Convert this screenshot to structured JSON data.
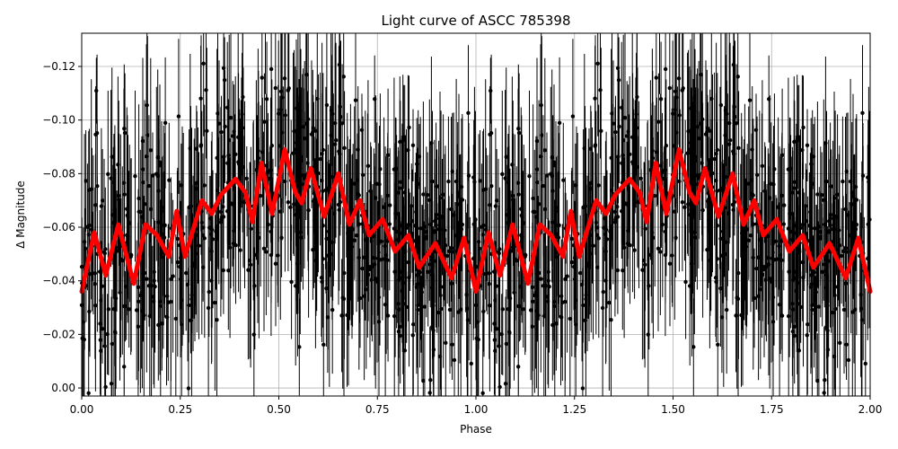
{
  "chart_data": {
    "type": "line",
    "title": "Light curve of ASCC 785398",
    "xlabel": "Phase",
    "ylabel": "Δ Magnitude",
    "xlim": [
      0.0,
      2.0
    ],
    "ylim": [
      0.003,
      -0.1324
    ],
    "y_inverted": true,
    "grid": true,
    "legend": null,
    "x_ticks": [
      0.0,
      0.25,
      0.5,
      0.75,
      1.0,
      1.25,
      1.5,
      1.75,
      2.0
    ],
    "x_tick_labels": [
      "0.00",
      "0.25",
      "0.50",
      "0.75",
      "1.00",
      "1.25",
      "1.50",
      "1.75",
      "2.00"
    ],
    "y_ticks": [
      -0.12,
      -0.1,
      -0.08,
      -0.06,
      -0.04,
      -0.02,
      0.0
    ],
    "y_tick_labels": [
      "−0.12",
      "−0.10",
      "−0.08",
      "−0.06",
      "−0.04",
      "−0.02",
      "0.00"
    ],
    "series": [
      {
        "name": "observations",
        "kind": "errorbar-scatter",
        "color": "#000000",
        "description": "Dense phase-folded photometric measurements with vertical error bars, spanning roughly −0.13 to 0.00 magnitude, repeated over two phase cycles",
        "approx_center": -0.058,
        "approx_spread": 0.045
      },
      {
        "name": "smoothed model",
        "kind": "line",
        "color": "#ff0000",
        "linewidth": 5,
        "period_repeats": 2,
        "x": [
          0.0,
          0.032,
          0.061,
          0.093,
          0.132,
          0.162,
          0.191,
          0.221,
          0.241,
          0.262,
          0.305,
          0.33,
          0.353,
          0.39,
          0.415,
          0.433,
          0.456,
          0.483,
          0.515,
          0.542,
          0.558,
          0.581,
          0.615,
          0.651,
          0.679,
          0.706,
          0.729,
          0.763,
          0.795,
          0.829,
          0.856,
          0.897,
          0.938,
          0.97,
          1.0
        ],
        "y": [
          -0.036,
          -0.058,
          -0.042,
          -0.061,
          -0.039,
          -0.061,
          -0.057,
          -0.049,
          -0.066,
          -0.049,
          -0.07,
          -0.065,
          -0.072,
          -0.078,
          -0.073,
          -0.062,
          -0.084,
          -0.065,
          -0.089,
          -0.073,
          -0.069,
          -0.082,
          -0.064,
          -0.08,
          -0.061,
          -0.07,
          -0.057,
          -0.063,
          -0.051,
          -0.057,
          -0.045,
          -0.054,
          -0.041,
          -0.056,
          -0.036
        ]
      }
    ]
  }
}
